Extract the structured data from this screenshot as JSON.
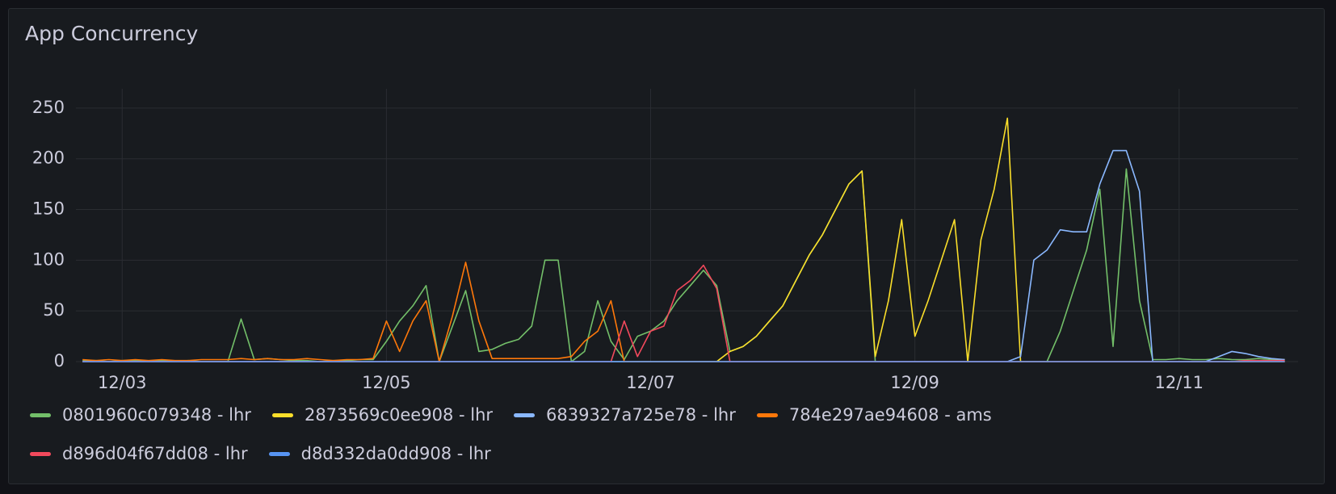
{
  "chart_data": {
    "type": "line",
    "title": "App Concurrency",
    "x": [
      2.7,
      2.8,
      2.9,
      3.0,
      3.1,
      3.2,
      3.3,
      3.4,
      3.5,
      3.6,
      3.7,
      3.8,
      3.9,
      4.0,
      4.1,
      4.2,
      4.3,
      4.4,
      4.5,
      4.6,
      4.7,
      4.8,
      4.9,
      5.0,
      5.1,
      5.2,
      5.3,
      5.4,
      5.5,
      5.6,
      5.7,
      5.8,
      5.9,
      6.0,
      6.1,
      6.2,
      6.3,
      6.4,
      6.5,
      6.6,
      6.7,
      6.8,
      6.9,
      7.0,
      7.1,
      7.2,
      7.3,
      7.4,
      7.5,
      7.6,
      7.7,
      7.8,
      7.9,
      8.0,
      8.1,
      8.2,
      8.3,
      8.4,
      8.5,
      8.6,
      8.7,
      8.8,
      8.9,
      9.0,
      9.1,
      9.2,
      9.3,
      9.4,
      9.5,
      9.6,
      9.7,
      9.8,
      9.9,
      10.0,
      10.1,
      10.2,
      10.3,
      10.4,
      10.5,
      10.6,
      10.7,
      10.8,
      10.9,
      11.0,
      11.1,
      11.2,
      11.3,
      11.4,
      11.5,
      11.6,
      11.7,
      11.8
    ],
    "series": [
      {
        "name": "0801960c079348 - lhr",
        "color": "#73bf69",
        "values": [
          1,
          1,
          0,
          1,
          1,
          0,
          1,
          0,
          1,
          0,
          0,
          0,
          42,
          2,
          3,
          2,
          1,
          1,
          0,
          1,
          1,
          2,
          2,
          20,
          40,
          55,
          75,
          0,
          35,
          70,
          10,
          12,
          18,
          22,
          35,
          100,
          100,
          0,
          10,
          60,
          20,
          2,
          25,
          30,
          40,
          60,
          75,
          90,
          75,
          10,
          15,
          25,
          40,
          55,
          80,
          105,
          125,
          150,
          175,
          188,
          0,
          0,
          0,
          0,
          0,
          0,
          0,
          0,
          0,
          0,
          0,
          0,
          0,
          0,
          30,
          70,
          110,
          170,
          15,
          190,
          60,
          2,
          2,
          3,
          2,
          2,
          3,
          2,
          2,
          3,
          2,
          2
        ]
      },
      {
        "name": "2873569c0ee908 - lhr",
        "color": "#fade2a",
        "values": [
          0,
          0,
          0,
          0,
          0,
          0,
          0,
          0,
          0,
          0,
          0,
          0,
          0,
          0,
          0,
          0,
          0,
          0,
          0,
          0,
          0,
          0,
          0,
          0,
          0,
          0,
          0,
          0,
          0,
          0,
          0,
          0,
          0,
          0,
          0,
          0,
          0,
          0,
          0,
          0,
          0,
          0,
          0,
          0,
          0,
          0,
          0,
          0,
          0,
          10,
          15,
          25,
          40,
          55,
          80,
          105,
          125,
          150,
          175,
          188,
          5,
          60,
          140,
          25,
          60,
          100,
          140,
          0,
          120,
          170,
          240,
          0,
          0,
          0,
          0,
          0,
          0,
          0,
          0,
          0,
          0,
          0,
          0,
          0,
          0,
          0,
          0,
          0,
          0,
          0,
          0,
          0
        ]
      },
      {
        "name": "6839327a725e78 - lhr",
        "color": "#8ab8ff",
        "values": [
          0,
          0,
          0,
          0,
          0,
          0,
          0,
          0,
          0,
          0,
          0,
          0,
          0,
          0,
          0,
          0,
          0,
          0,
          0,
          0,
          0,
          0,
          0,
          0,
          0,
          0,
          0,
          0,
          0,
          0,
          0,
          0,
          0,
          0,
          0,
          0,
          0,
          0,
          0,
          0,
          0,
          0,
          0,
          0,
          0,
          0,
          0,
          0,
          0,
          0,
          0,
          0,
          0,
          0,
          0,
          0,
          0,
          0,
          0,
          0,
          0,
          0,
          0,
          0,
          0,
          0,
          0,
          0,
          0,
          0,
          0,
          5,
          100,
          110,
          130,
          128,
          128,
          175,
          208,
          208,
          168,
          0,
          0,
          0,
          0,
          0,
          5,
          10,
          8,
          5,
          3,
          2
        ]
      },
      {
        "name": "784e297ae94608 - ams",
        "color": "#ff780a",
        "values": [
          2,
          1,
          2,
          1,
          2,
          1,
          2,
          1,
          1,
          2,
          2,
          2,
          3,
          2,
          3,
          2,
          2,
          3,
          2,
          1,
          2,
          2,
          3,
          40,
          10,
          40,
          60,
          0,
          45,
          98,
          40,
          3,
          3,
          3,
          3,
          3,
          3,
          5,
          20,
          30,
          60,
          0,
          0,
          0,
          0,
          0,
          0,
          0,
          0,
          0,
          0,
          0,
          0,
          0,
          0,
          0,
          0,
          0,
          0,
          0,
          0,
          0,
          0,
          0,
          0,
          0,
          0,
          0,
          0,
          0,
          0,
          0,
          0,
          0,
          0,
          0,
          0,
          0,
          0,
          0,
          0,
          0,
          0,
          0,
          0,
          0,
          0,
          0,
          0,
          0,
          0,
          0
        ]
      },
      {
        "name": "d896d04f67dd08 - lhr",
        "color": "#f2495c",
        "values": [
          0,
          0,
          0,
          0,
          0,
          0,
          0,
          0,
          0,
          0,
          0,
          0,
          0,
          0,
          0,
          0,
          0,
          0,
          0,
          0,
          0,
          0,
          0,
          0,
          0,
          0,
          0,
          0,
          0,
          0,
          0,
          0,
          0,
          0,
          0,
          0,
          0,
          0,
          0,
          0,
          0,
          40,
          5,
          30,
          35,
          70,
          80,
          95,
          72,
          0,
          0,
          0,
          0,
          0,
          0,
          0,
          0,
          0,
          0,
          0,
          0,
          0,
          0,
          0,
          0,
          0,
          0,
          0,
          0,
          0,
          0,
          0,
          0,
          0,
          0,
          0,
          0,
          0,
          0,
          0,
          0,
          0,
          0,
          0,
          0,
          0,
          0,
          0,
          1,
          1,
          1,
          1
        ]
      },
      {
        "name": "d8d332da0dd908 - lhr",
        "color": "#5794f2",
        "values": [
          0,
          0,
          0,
          0,
          0,
          0,
          0,
          0,
          0,
          0,
          0,
          0,
          0,
          0,
          0,
          0,
          0,
          0,
          0,
          0,
          0,
          0,
          0,
          0,
          0,
          0,
          0,
          0,
          0,
          0,
          0,
          0,
          0,
          0,
          0,
          0,
          0,
          0,
          0,
          0,
          0,
          0,
          0,
          0,
          0,
          0,
          0,
          0,
          0,
          0,
          0,
          0,
          0,
          0,
          0,
          0,
          0,
          0,
          0,
          0,
          0,
          0,
          0,
          0,
          0,
          0,
          0,
          0,
          0,
          0,
          0,
          0,
          0,
          0,
          0,
          0,
          0,
          0,
          0,
          0,
          0,
          0,
          0,
          0,
          0,
          0,
          0,
          0,
          0,
          0,
          0,
          0
        ]
      }
    ],
    "xlim": [
      2.65,
      11.9
    ],
    "xticks": [
      {
        "value": 3,
        "label": "12/03"
      },
      {
        "value": 5,
        "label": "12/05"
      },
      {
        "value": 7,
        "label": "12/07"
      },
      {
        "value": 9,
        "label": "12/09"
      },
      {
        "value": 11,
        "label": "12/11"
      }
    ],
    "ylim": [
      0,
      269
    ],
    "yticks": [
      0,
      50,
      100,
      150,
      200,
      250
    ],
    "grid": true
  }
}
